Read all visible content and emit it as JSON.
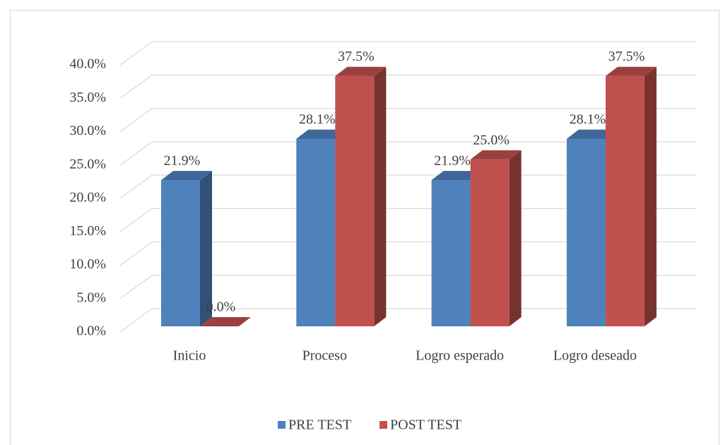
{
  "chart_data": {
    "type": "bar3d",
    "categories": [
      "Inicio",
      "Proceso",
      "Logro esperado",
      "Logro deseado"
    ],
    "series": [
      {
        "name": "PRE TEST",
        "color": "#4f81bd",
        "values": [
          21.9,
          28.1,
          21.9,
          28.1
        ],
        "value_labels": [
          "21.9%",
          "28.1%",
          "21.9%",
          "28.1%"
        ]
      },
      {
        "name": "POST TEST",
        "color": "#c0504d",
        "values": [
          0,
          37.5,
          25.0,
          37.5
        ],
        "value_labels": [
          "0.0%",
          "37.5%",
          "25.0%",
          "37.5%"
        ]
      }
    ],
    "ylim": [
      0,
      40
    ],
    "yticks": [
      {
        "value": 0,
        "label": "0.0%"
      },
      {
        "value": 5,
        "label": "5.0%"
      },
      {
        "value": 10,
        "label": "10.0%"
      },
      {
        "value": 15,
        "label": "15.0%"
      },
      {
        "value": 20,
        "label": "20.0%"
      },
      {
        "value": 25,
        "label": "25.0%"
      },
      {
        "value": 30,
        "label": "30.0%"
      },
      {
        "value": 35,
        "label": "35.0%"
      },
      {
        "value": 40,
        "label": "40.0%"
      }
    ],
    "grid": true,
    "legend": "bottom"
  }
}
